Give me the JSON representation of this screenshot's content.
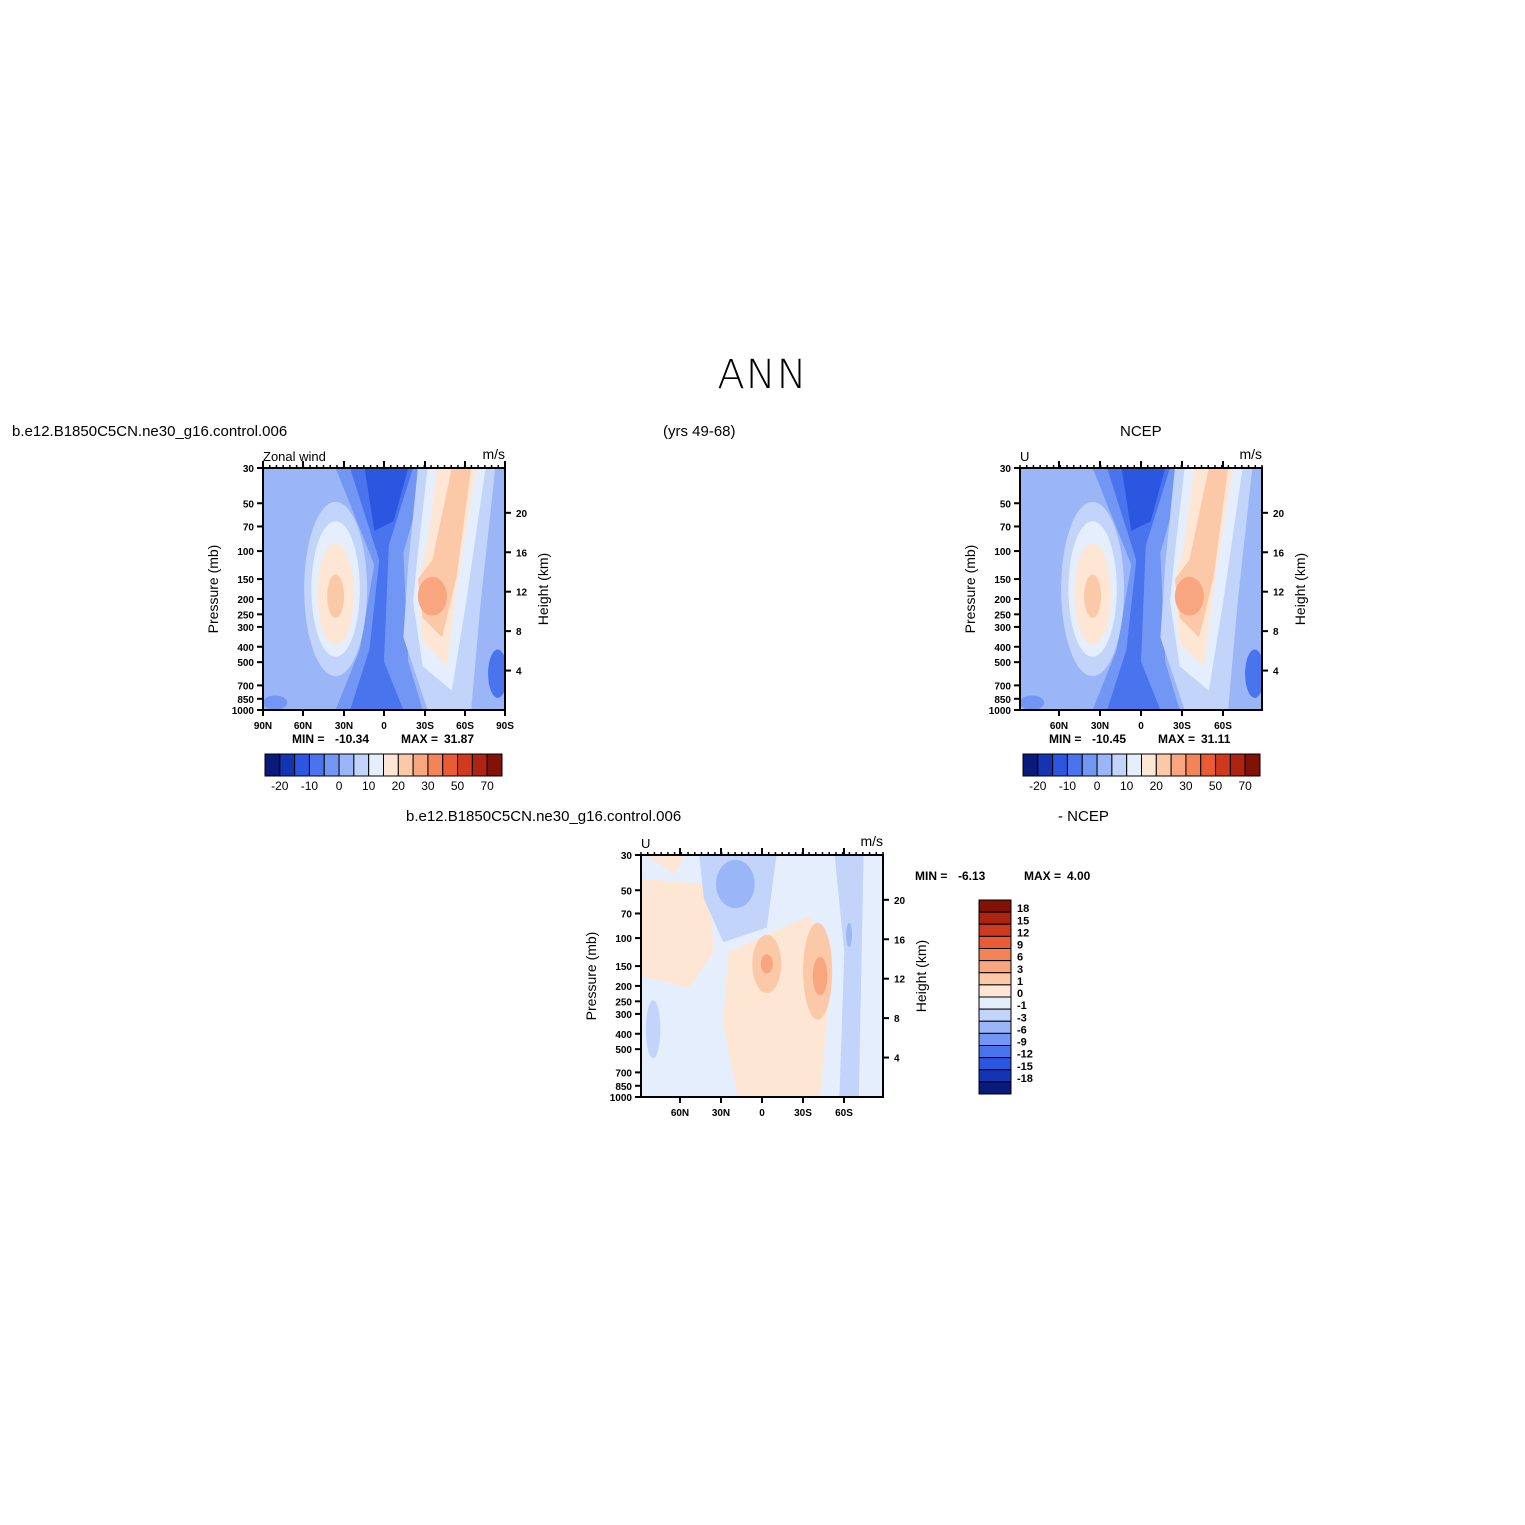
{
  "figure": {
    "title": "ANN",
    "model_case": "b.e12.B1850C5CN.ne30_g16.control.006",
    "years": "(yrs 49-68)",
    "obs_name": "NCEP",
    "diff_case": "b.e12.B1850C5CN.ne30_g16.control.006",
    "diff_obs": "- NCEP"
  },
  "chart_data": [
    {
      "type": "heatmap",
      "panel": "model",
      "title_left": "Zonal wind",
      "title_right": "m/s",
      "ylabel": "Pressure (mb)",
      "ylabel_right": "Height (km)",
      "x_ticks": [
        "90N",
        "60N",
        "30N",
        "0",
        "30S",
        "60S",
        "90S"
      ],
      "y_ticks": [
        "30",
        "50",
        "70",
        "100",
        "150",
        "200",
        "250",
        "300",
        "400",
        "500",
        "700",
        "850",
        "1000"
      ],
      "y_ticks_right": [
        "20",
        "16",
        "12",
        "8",
        "4"
      ],
      "min_label": "MIN =",
      "min_value": "-10.34",
      "max_label": "MAX =",
      "max_value": "31.87",
      "colorbar_labels": [
        "-20",
        "-10",
        "0",
        "10",
        "20",
        "30",
        "50",
        "70"
      ],
      "blobs": [
        {
          "lat": 33,
          "p": 200,
          "value": 22,
          "desc": "northern hemisphere jet"
        },
        {
          "lat": -35,
          "p": 200,
          "value": 31.87,
          "desc": "southern hemisphere jet"
        },
        {
          "lat": 0,
          "p": 40,
          "value": -10.34,
          "desc": "tropical easterlies aloft"
        }
      ]
    },
    {
      "type": "heatmap",
      "panel": "obs",
      "title_left": "U",
      "title_right": "m/s",
      "ylabel": "Pressure (mb)",
      "ylabel_right": "Height (km)",
      "x_ticks": [
        "60N",
        "30N",
        "0",
        "30S",
        "60S"
      ],
      "y_ticks": [
        "30",
        "50",
        "70",
        "100",
        "150",
        "200",
        "250",
        "300",
        "400",
        "500",
        "700",
        "850",
        "1000"
      ],
      "y_ticks_right": [
        "20",
        "16",
        "12",
        "8",
        "4"
      ],
      "min_label": "MIN =",
      "min_value": "-10.45",
      "max_label": "MAX =",
      "max_value": "31.11",
      "colorbar_labels": [
        "-20",
        "-10",
        "0",
        "10",
        "20",
        "30",
        "50",
        "70"
      ],
      "blobs": [
        {
          "lat": 35,
          "p": 200,
          "value": 22,
          "desc": "northern hemisphere jet"
        },
        {
          "lat": -40,
          "p": 200,
          "value": 31.11,
          "desc": "southern hemisphere jet"
        },
        {
          "lat": 0,
          "p": 40,
          "value": -10.45,
          "desc": "tropical easterlies aloft"
        }
      ]
    },
    {
      "type": "heatmap",
      "panel": "difference",
      "title_left": "U",
      "title_right": "m/s",
      "ylabel": "Pressure (mb)",
      "ylabel_right": "Height (km)",
      "x_ticks": [
        "60N",
        "30N",
        "0",
        "30S",
        "60S"
      ],
      "y_ticks": [
        "30",
        "50",
        "70",
        "100",
        "150",
        "200",
        "250",
        "300",
        "400",
        "500",
        "700",
        "850",
        "1000"
      ],
      "y_ticks_right": [
        "20",
        "16",
        "12",
        "8",
        "4"
      ],
      "min_label": "MIN =",
      "min_value": "-6.13",
      "max_label": "MAX =",
      "max_value": "4.00",
      "colorbar_labels": [
        "18",
        "15",
        "12",
        "9",
        "6",
        "3",
        "1",
        "0",
        "-1",
        "-3",
        "-6",
        "-9",
        "-12",
        "-15",
        "-18"
      ]
    }
  ],
  "colors": {
    "model_scale": [
      "#0a1a7a",
      "#1434b4",
      "#2a56e0",
      "#4a74ee",
      "#7296f4",
      "#9ab6f6",
      "#c2d4fa",
      "#e4eefd",
      "#fde6d4",
      "#fbc8a8",
      "#f8a680",
      "#f38459",
      "#e95b34",
      "#cf3a1e",
      "#ad2412",
      "#801208"
    ],
    "diff_scale": [
      "#801208",
      "#ad2412",
      "#cf3a1e",
      "#e95b34",
      "#f38459",
      "#f8a680",
      "#fbc8a8",
      "#fde6d4",
      "#e4eefd",
      "#c2d4fa",
      "#9ab6f6",
      "#7296f4",
      "#4a74ee",
      "#2a56e0",
      "#1434b4",
      "#0a1a7a"
    ]
  }
}
